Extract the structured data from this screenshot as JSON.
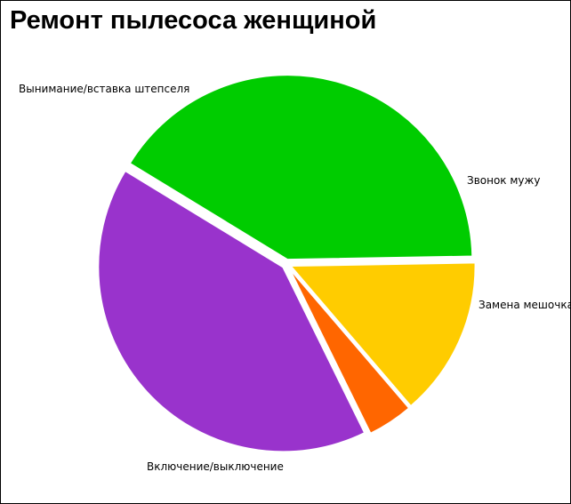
{
  "chart_data": {
    "type": "pie",
    "title": "Ремонт пылесоса женщиной",
    "slices": [
      {
        "label": "Звонок мужу",
        "value": 14,
        "color": "#ffcc00"
      },
      {
        "label": "Замена мешочка",
        "value": 4,
        "color": "#ff6600"
      },
      {
        "label": "Включение/выключение",
        "value": 41,
        "color": "#9933cc"
      },
      {
        "label": "Вынимание/вставка штепселя",
        "value": 41,
        "color": "#00cc00"
      }
    ]
  }
}
